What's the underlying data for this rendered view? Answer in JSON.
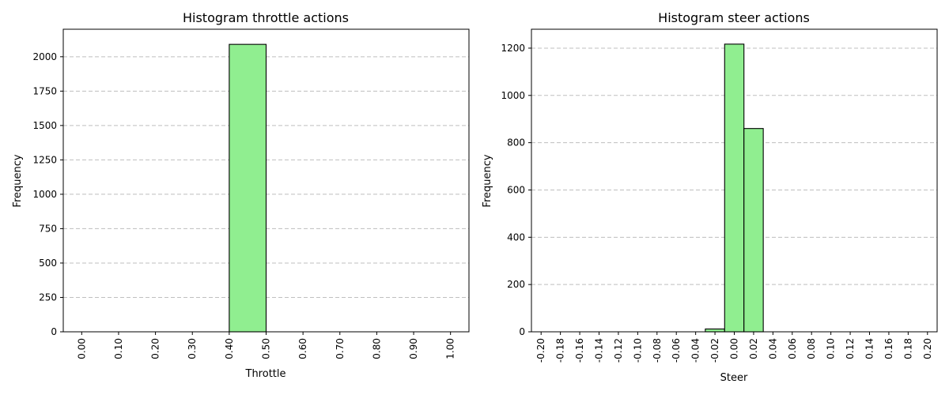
{
  "chart_data": [
    {
      "type": "bar",
      "title": "Histogram throttle actions",
      "xlabel": "Throttle",
      "ylabel": "Frequency",
      "xlim": [
        -0.05,
        1.05
      ],
      "ylim": [
        0,
        2200
      ],
      "x_ticks": [
        "0.00",
        "0.10",
        "0.20",
        "0.30",
        "0.40",
        "0.50",
        "0.60",
        "0.70",
        "0.80",
        "0.90",
        "1.00"
      ],
      "y_ticks": [
        "0",
        "250",
        "500",
        "750",
        "1000",
        "1250",
        "1500",
        "1750",
        "2000"
      ],
      "bin_edges": [
        0.0,
        0.1,
        0.2,
        0.3,
        0.4,
        0.5,
        0.6,
        0.7,
        0.8,
        0.9,
        1.0
      ],
      "values": [
        0,
        0,
        0,
        0,
        2090,
        0,
        0,
        0,
        0,
        0
      ],
      "bar_color": "#90ee90",
      "grid": "y-dashed",
      "tick_rotation": 90
    },
    {
      "type": "bar",
      "title": "Histogram steer actions",
      "xlabel": "Steer",
      "ylabel": "Frequency",
      "xlim": [
        -0.21,
        0.21
      ],
      "ylim": [
        0,
        1280
      ],
      "x_ticks": [
        "-0.20",
        "-0.18",
        "-0.16",
        "-0.14",
        "-0.12",
        "-0.10",
        "-0.08",
        "-0.06",
        "-0.04",
        "-0.02",
        "0.00",
        "0.02",
        "0.04",
        "0.06",
        "0.08",
        "0.10",
        "0.12",
        "0.14",
        "0.16",
        "0.18",
        "0.20"
      ],
      "y_ticks": [
        "0",
        "200",
        "400",
        "600",
        "800",
        "1000",
        "1200"
      ],
      "bin_edges": [
        -0.19,
        -0.17,
        -0.15,
        -0.13,
        -0.11,
        -0.09,
        -0.07,
        -0.05,
        -0.03,
        -0.01,
        0.01,
        0.03,
        0.05,
        0.07,
        0.09,
        0.11,
        0.13,
        0.15,
        0.17,
        0.19
      ],
      "values": [
        0,
        0,
        0,
        0,
        0,
        0,
        0,
        0,
        12,
        1217,
        860,
        0,
        0,
        0,
        0,
        0,
        0,
        0,
        0
      ],
      "bar_color": "#90ee90",
      "grid": "y-dashed",
      "tick_rotation": 90
    }
  ]
}
